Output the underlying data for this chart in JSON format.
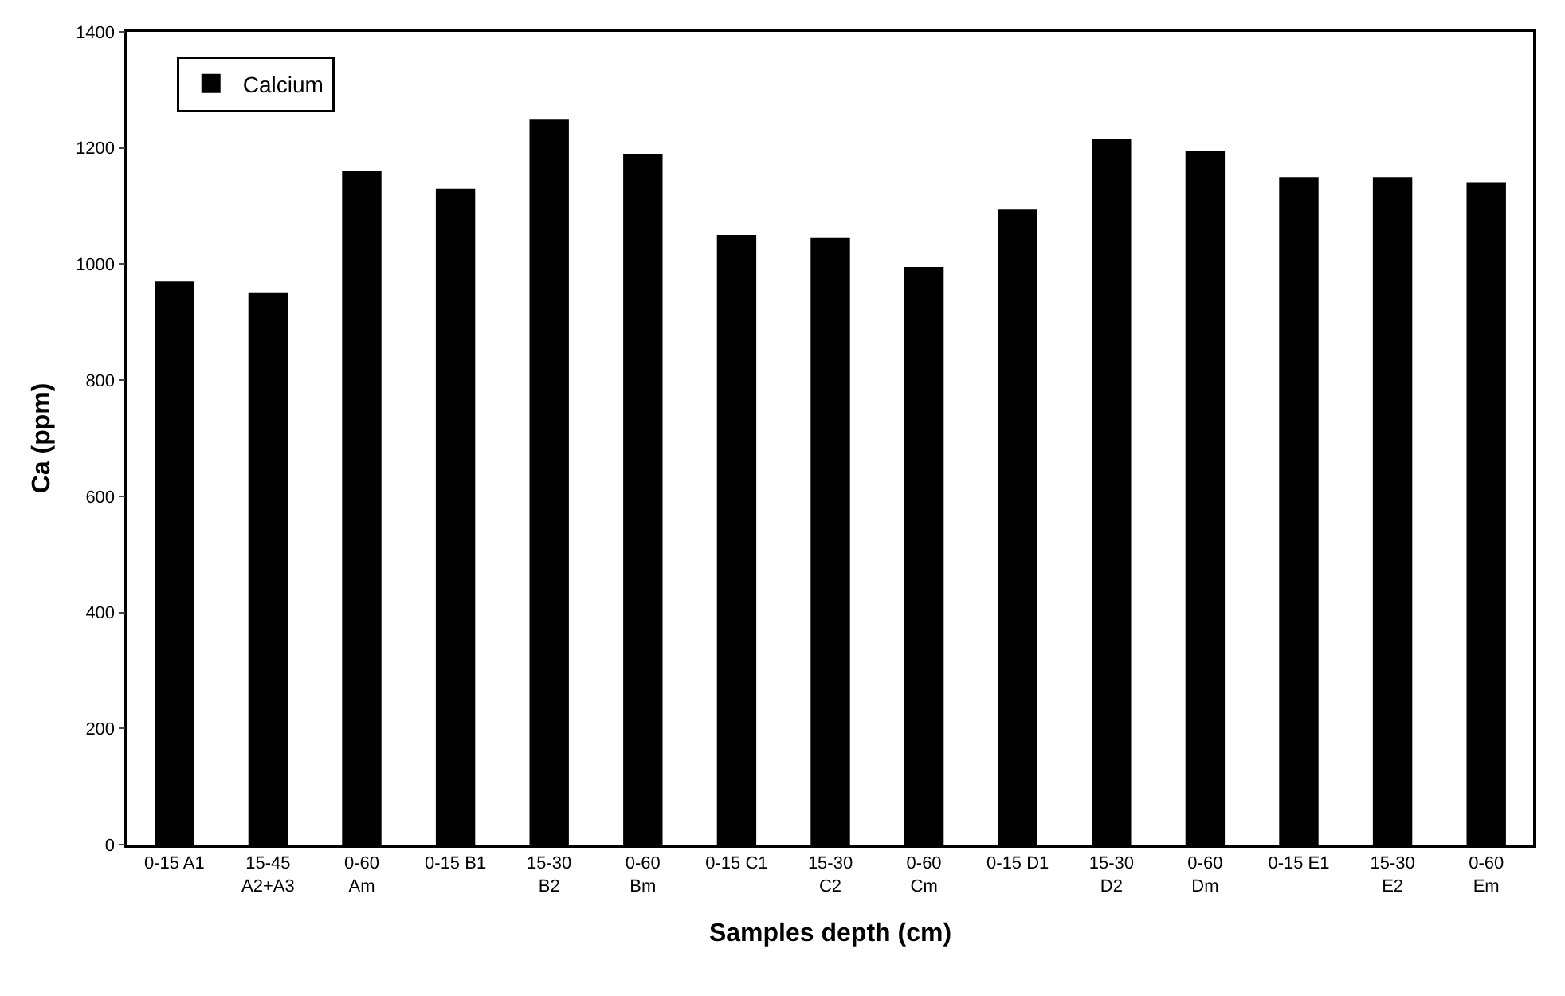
{
  "chart_data": {
    "type": "bar",
    "xlabel": "Samples depth (cm)",
    "ylabel": "Ca (ppm)",
    "categories": [
      "0-15 A1",
      "15-45\nA2+A3",
      "0-60\nAm",
      "0-15 B1",
      "15-30\nB2",
      "0-60\nBm",
      "0-15 C1",
      "15-30\nC2",
      "0-60\nCm",
      "0-15 D1",
      "15-30\nD2",
      "0-60\nDm",
      "0-15 E1",
      "15-30\nE2",
      "0-60\nEm"
    ],
    "series": [
      {
        "name": "Calcium",
        "color": "#000000",
        "values": [
          970,
          950,
          1160,
          1130,
          1250,
          1190,
          1050,
          1045,
          995,
          1095,
          1215,
          1195,
          1150,
          1150,
          1140
        ]
      }
    ],
    "ylim": [
      0,
      1400
    ],
    "yticks": [
      0,
      200,
      400,
      600,
      800,
      1000,
      1200,
      1400
    ],
    "legend": "top left"
  }
}
